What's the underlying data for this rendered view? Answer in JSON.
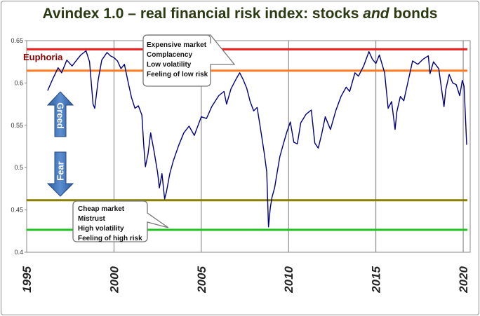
{
  "title": {
    "before": "Avindex 1.0 – real financial risk index: stocks ",
    "emphasis": "and",
    "after": " bonds"
  },
  "chart_data": {
    "type": "line",
    "title": "Avindex 1.0 – real financial risk index: stocks and bonds",
    "xlim": [
      1995,
      2020.4
    ],
    "ylim": [
      0.4,
      0.65
    ],
    "x_ticks": [
      1995,
      2000,
      2005,
      2010,
      2015,
      2020
    ],
    "y_ticks": [
      0.4,
      0.45,
      0.5,
      0.55,
      0.6,
      0.65
    ],
    "grid": "vertical",
    "series": [
      {
        "color": "#00007f",
        "points": [
          [
            1996.2,
            0.591
          ],
          [
            1996.5,
            0.605
          ],
          [
            1996.8,
            0.618
          ],
          [
            1997.0,
            0.612
          ],
          [
            1997.3,
            0.627
          ],
          [
            1997.6,
            0.62
          ],
          [
            1997.9,
            0.628
          ],
          [
            1998.1,
            0.633
          ],
          [
            1998.4,
            0.638
          ],
          [
            1998.6,
            0.625
          ],
          [
            1998.8,
            0.575
          ],
          [
            1998.9,
            0.57
          ],
          [
            1999.1,
            0.604
          ],
          [
            1999.3,
            0.627
          ],
          [
            1999.6,
            0.636
          ],
          [
            1999.8,
            0.632
          ],
          [
            2000.0,
            0.63
          ],
          [
            2000.2,
            0.626
          ],
          [
            2000.4,
            0.617
          ],
          [
            2000.6,
            0.622
          ],
          [
            2000.8,
            0.602
          ],
          [
            2001.0,
            0.583
          ],
          [
            2001.2,
            0.57
          ],
          [
            2001.4,
            0.573
          ],
          [
            2001.6,
            0.562
          ],
          [
            2001.7,
            0.528
          ],
          [
            2001.8,
            0.501
          ],
          [
            2001.95,
            0.516
          ],
          [
            2002.1,
            0.541
          ],
          [
            2002.3,
            0.519
          ],
          [
            2002.5,
            0.494
          ],
          [
            2002.6,
            0.476
          ],
          [
            2002.75,
            0.493
          ],
          [
            2002.9,
            0.463
          ],
          [
            2003.0,
            0.471
          ],
          [
            2003.2,
            0.493
          ],
          [
            2003.4,
            0.508
          ],
          [
            2003.7,
            0.526
          ],
          [
            2004.0,
            0.541
          ],
          [
            2004.3,
            0.549
          ],
          [
            2004.6,
            0.538
          ],
          [
            2005.0,
            0.56
          ],
          [
            2005.3,
            0.558
          ],
          [
            2005.6,
            0.572
          ],
          [
            2006.0,
            0.585
          ],
          [
            2006.3,
            0.59
          ],
          [
            2006.45,
            0.575
          ],
          [
            2006.7,
            0.593
          ],
          [
            2007.0,
            0.605
          ],
          [
            2007.2,
            0.612
          ],
          [
            2007.4,
            0.604
          ],
          [
            2007.6,
            0.594
          ],
          [
            2007.8,
            0.578
          ],
          [
            2008.0,
            0.567
          ],
          [
            2008.2,
            0.571
          ],
          [
            2008.4,
            0.545
          ],
          [
            2008.6,
            0.518
          ],
          [
            2008.75,
            0.495
          ],
          [
            2008.85,
            0.43
          ],
          [
            2008.95,
            0.452
          ],
          [
            2009.05,
            0.465
          ],
          [
            2009.2,
            0.476
          ],
          [
            2009.35,
            0.495
          ],
          [
            2009.5,
            0.513
          ],
          [
            2009.7,
            0.528
          ],
          [
            2009.9,
            0.542
          ],
          [
            2010.1,
            0.554
          ],
          [
            2010.3,
            0.53
          ],
          [
            2010.5,
            0.528
          ],
          [
            2010.7,
            0.553
          ],
          [
            2011.0,
            0.563
          ],
          [
            2011.3,
            0.568
          ],
          [
            2011.5,
            0.529
          ],
          [
            2011.7,
            0.523
          ],
          [
            2011.9,
            0.54
          ],
          [
            2012.1,
            0.56
          ],
          [
            2012.4,
            0.545
          ],
          [
            2012.7,
            0.567
          ],
          [
            2013.0,
            0.584
          ],
          [
            2013.3,
            0.595
          ],
          [
            2013.5,
            0.59
          ],
          [
            2013.8,
            0.612
          ],
          [
            2014.0,
            0.608
          ],
          [
            2014.3,
            0.62
          ],
          [
            2014.6,
            0.637
          ],
          [
            2014.8,
            0.628
          ],
          [
            2015.0,
            0.623
          ],
          [
            2015.2,
            0.633
          ],
          [
            2015.5,
            0.612
          ],
          [
            2015.7,
            0.57
          ],
          [
            2015.9,
            0.578
          ],
          [
            2016.1,
            0.545
          ],
          [
            2016.2,
            0.566
          ],
          [
            2016.4,
            0.584
          ],
          [
            2016.6,
            0.579
          ],
          [
            2016.9,
            0.607
          ],
          [
            2017.1,
            0.626
          ],
          [
            2017.4,
            0.622
          ],
          [
            2017.7,
            0.628
          ],
          [
            2018.0,
            0.632
          ],
          [
            2018.1,
            0.611
          ],
          [
            2018.3,
            0.625
          ],
          [
            2018.6,
            0.617
          ],
          [
            2018.9,
            0.572
          ],
          [
            2019.0,
            0.592
          ],
          [
            2019.2,
            0.61
          ],
          [
            2019.4,
            0.6
          ],
          [
            2019.6,
            0.598
          ],
          [
            2019.8,
            0.585
          ],
          [
            2019.95,
            0.603
          ],
          [
            2020.05,
            0.596
          ],
          [
            2020.12,
            0.565
          ],
          [
            2020.2,
            0.527
          ]
        ]
      }
    ],
    "reference_lines": [
      {
        "y": 0.6398,
        "color": "#ee1c1c"
      },
      {
        "y": 0.6145,
        "color": "#ff7920"
      },
      {
        "y": 0.4615,
        "color": "#8a7f00"
      },
      {
        "y": 0.4265,
        "color": "#1ec31e"
      }
    ],
    "labels": {
      "euphoria": "Euphoria",
      "greed": "Greed",
      "fear": "Fear"
    },
    "callouts": [
      {
        "lines": [
          "Expensive market",
          "Complacency",
          "Low volatility",
          "Feeling of low risk"
        ]
      },
      {
        "lines": [
          "Cheap market",
          "Mistrust",
          "High volatility",
          "Feeling of high risk"
        ]
      }
    ]
  }
}
